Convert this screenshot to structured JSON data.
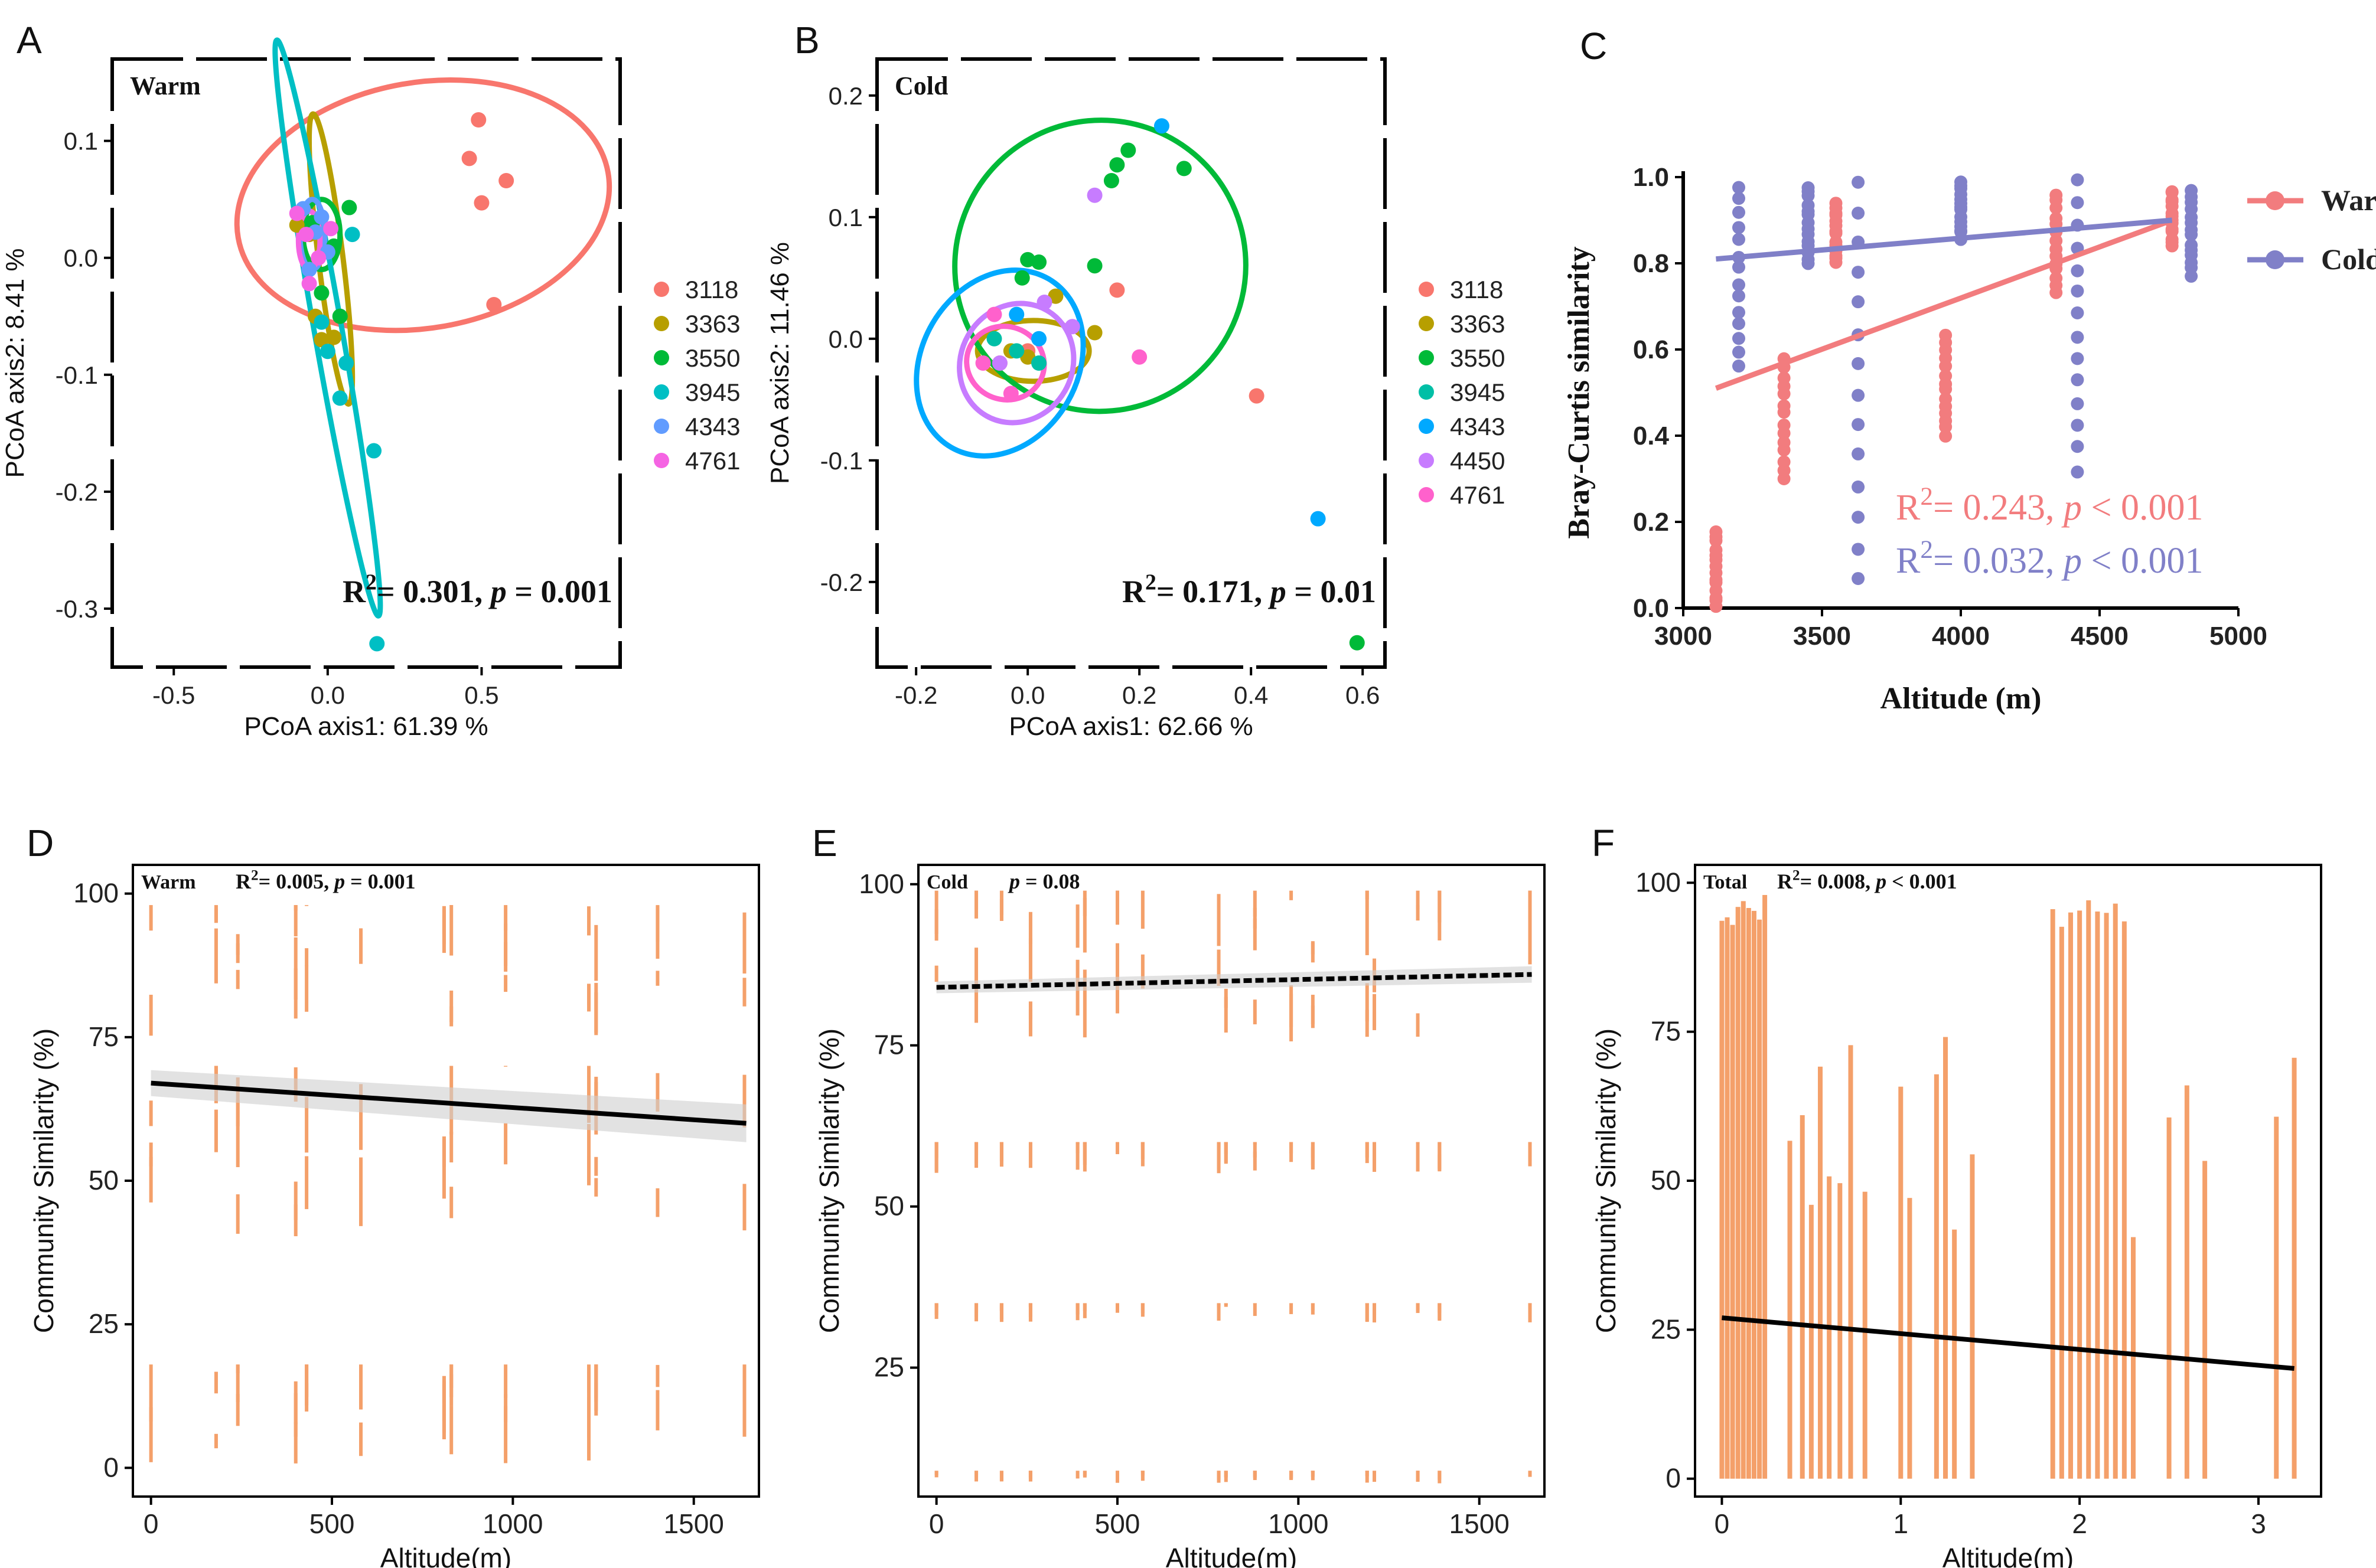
{
  "figure": "Multi-panel community similarity figure",
  "chart_data": [
    {
      "panel_label": "A",
      "type": "scatter",
      "title": "Warm",
      "xlabel": "PCoA axis1:  61.39 %",
      "ylabel": "PCoA axis2:  8.41 %",
      "xlim": [
        -0.7,
        0.95
      ],
      "ylim": [
        -0.35,
        0.17
      ],
      "xticks": [
        "-0.5",
        "0.0",
        "0.5"
      ],
      "xtick_values": [
        -0.5,
        0.0,
        0.5
      ],
      "yticks": [
        "0.1",
        "0.0",
        "-0.1",
        "-0.2",
        "-0.3"
      ],
      "ytick_values": [
        0.1,
        0.0,
        -0.1,
        -0.2,
        -0.3
      ],
      "annotation": {
        "r2": "0.301",
        "p": "p = 0.001"
      },
      "series": [
        {
          "name": "3118",
          "color": "#F8766D",
          "points": [
            [
              0.46,
              0.085
            ],
            [
              0.49,
              0.118
            ],
            [
              0.5,
              0.047
            ],
            [
              0.58,
              0.066
            ],
            [
              0.54,
              -0.04
            ]
          ],
          "ellipse": {
            "cx": 0.31,
            "cy": 0.045,
            "rx": 0.61,
            "ry": 0.105,
            "angle": 10
          }
        },
        {
          "name": "3363",
          "color": "#B79F00",
          "points": [
            [
              -0.02,
              -0.07
            ],
            [
              0.02,
              -0.068
            ],
            [
              -0.06,
              0.02
            ],
            [
              -0.1,
              0.028
            ],
            [
              -0.04,
              -0.05
            ]
          ],
          "ellipse": {
            "cx": 0.01,
            "cy": -0.001,
            "rx": 0.04,
            "ry": 0.125,
            "angle": 7
          }
        },
        {
          "name": "3550",
          "color": "#00BA38",
          "points": [
            [
              0.07,
              0.043
            ],
            [
              -0.05,
              0.03
            ],
            [
              0.02,
              0.01
            ],
            [
              -0.02,
              -0.03
            ],
            [
              0.04,
              -0.05
            ]
          ],
          "ellipse": {
            "cx": -0.02,
            "cy": 0.02,
            "rx": 0.06,
            "ry": 0.03,
            "angle": 0
          }
        },
        {
          "name": "3945",
          "color": "#00BFC4",
          "points": [
            [
              0.08,
              0.02
            ],
            [
              0.04,
              -0.12
            ],
            [
              0.15,
              -0.165
            ],
            [
              0.16,
              -0.33
            ],
            [
              -0.02,
              -0.055
            ],
            [
              0.0,
              -0.08
            ],
            [
              0.06,
              -0.09
            ]
          ],
          "ellipse": {
            "cx": 0.0,
            "cy": -0.06,
            "rx": 0.045,
            "ry": 0.25,
            "angle": 10
          }
        },
        {
          "name": "4343",
          "color": "#619CFF",
          "points": [
            [
              -0.08,
              0.042
            ],
            [
              -0.04,
              0.022
            ],
            [
              0.0,
              0.005
            ],
            [
              -0.06,
              -0.01
            ],
            [
              -0.02,
              0.035
            ]
          ],
          "ellipse": {
            "cx": -0.05,
            "cy": 0.02,
            "rx": 0.04,
            "ry": 0.03,
            "angle": 0
          }
        },
        {
          "name": "4761",
          "color": "#F564E3",
          "points": [
            [
              -0.1,
              0.038
            ],
            [
              -0.07,
              0.02
            ],
            [
              -0.03,
              0.0
            ],
            [
              -0.06,
              -0.022
            ],
            [
              0.01,
              0.025
            ]
          ],
          "ellipse": {
            "cx": -0.06,
            "cy": 0.015,
            "rx": 0.035,
            "ry": 0.025,
            "angle": 0
          }
        }
      ]
    },
    {
      "panel_label": "B",
      "type": "scatter",
      "title": "Cold",
      "xlabel": "PCoA axis1:  62.66 %",
      "ylabel": "PCoA axis2:  11.46 %",
      "xlim": [
        -0.27,
        0.64
      ],
      "ylim": [
        -0.27,
        0.23
      ],
      "xticks": [
        "-0.2",
        "0.0",
        "0.2",
        "0.4",
        "0.6"
      ],
      "xtick_values": [
        -0.2,
        0.0,
        0.2,
        0.4,
        0.6
      ],
      "yticks": [
        "0.2",
        "0.1",
        "0.0",
        "-0.1",
        "-0.2"
      ],
      "ytick_values": [
        0.2,
        0.1,
        0.0,
        -0.1,
        -0.2
      ],
      "annotation": {
        "r2": "0.171",
        "p": "p = 0.01"
      },
      "series": [
        {
          "name": "3118",
          "color": "#F8766D",
          "points": [
            [
              0.16,
              0.04
            ],
            [
              0.41,
              -0.047
            ],
            [
              0.0,
              -0.01
            ],
            [
              -0.05,
              -0.02
            ]
          ],
          "ellipse": null
        },
        {
          "name": "3363",
          "color": "#B79F00",
          "points": [
            [
              0.12,
              0.005
            ],
            [
              0.05,
              0.035
            ],
            [
              0.0,
              -0.015
            ],
            [
              -0.03,
              -0.01
            ]
          ],
          "ellipse": {
            "cx": 0.01,
            "cy": -0.01,
            "rx": 0.1,
            "ry": 0.025,
            "angle": 0
          }
        },
        {
          "name": "3550",
          "color": "#00BA38",
          "points": [
            [
              0.28,
              0.14
            ],
            [
              0.18,
              0.155
            ],
            [
              0.16,
              0.143
            ],
            [
              0.15,
              0.13
            ],
            [
              0.12,
              0.06
            ],
            [
              0.0,
              0.065
            ],
            [
              0.02,
              0.063
            ],
            [
              0.59,
              -0.25
            ],
            [
              -0.01,
              0.05
            ]
          ],
          "ellipse": {
            "cx": 0.13,
            "cy": 0.06,
            "rx": 0.26,
            "ry": 0.12,
            "angle": -40
          }
        },
        {
          "name": "3945",
          "color": "#00BFA6",
          "points": [
            [
              -0.06,
              0.0
            ],
            [
              -0.02,
              -0.01
            ],
            [
              0.02,
              -0.02
            ]
          ],
          "ellipse": null
        },
        {
          "name": "4343",
          "color": "#00A9FF",
          "points": [
            [
              0.24,
              0.175
            ],
            [
              0.52,
              -0.148
            ],
            [
              -0.02,
              0.02
            ],
            [
              0.02,
              0.0
            ]
          ],
          "ellipse": {
            "cx": -0.05,
            "cy": -0.02,
            "rx": 0.14,
            "ry": 0.08,
            "angle": -30
          }
        },
        {
          "name": "4450",
          "color": "#C77CFF",
          "points": [
            [
              0.12,
              0.118
            ],
            [
              0.03,
              0.03
            ],
            [
              -0.05,
              -0.02
            ],
            [
              0.08,
              0.01
            ]
          ],
          "ellipse": {
            "cx": -0.02,
            "cy": -0.02,
            "rx": 0.1,
            "ry": 0.05,
            "angle": -30
          }
        },
        {
          "name": "4761",
          "color": "#FF61CC",
          "points": [
            [
              0.2,
              -0.015
            ],
            [
              -0.06,
              0.02
            ],
            [
              -0.08,
              -0.02
            ],
            [
              -0.03,
              -0.045
            ]
          ],
          "ellipse": {
            "cx": -0.04,
            "cy": -0.02,
            "rx": 0.07,
            "ry": 0.03,
            "angle": -20
          }
        }
      ]
    },
    {
      "panel_label": "C",
      "type": "scatter",
      "title": "",
      "xlabel": "Altitude (m)",
      "ylabel": "Bray-Curtis similarity",
      "xlim": [
        3000,
        5000
      ],
      "ylim": [
        0,
        1.0
      ],
      "xticks": [
        "3000",
        "3500",
        "4000",
        "4500",
        "5000"
      ],
      "xtick_values": [
        3000,
        3500,
        4000,
        4500,
        5000
      ],
      "yticks": [
        "0.0",
        "0.2",
        "0.4",
        "0.6",
        "0.8",
        "1.0"
      ],
      "ytick_values": [
        0,
        0.2,
        0.4,
        0.6,
        0.8,
        1.0
      ],
      "legend": [
        "Warm",
        "Cold"
      ],
      "series": [
        {
          "name": "Warm",
          "color": "#F27C7E",
          "x_positions": [
            3118,
            3363,
            3550,
            3945,
            4343,
            4761
          ],
          "y_ranges": [
            [
              0.0,
              0.18
            ],
            [
              0.3,
              0.58
            ],
            [
              0.8,
              0.94
            ],
            [
              0.4,
              0.63
            ],
            [
              0.73,
              0.96
            ],
            [
              0.84,
              0.97
            ]
          ],
          "fit": [
            [
              3118,
              0.51
            ],
            [
              4761,
              0.9
            ]
          ]
        },
        {
          "name": "Cold",
          "color": "#8080C8",
          "x_positions": [
            3200,
            3450,
            3630,
            4000,
            4420,
            4830
          ],
          "y_ranges": [
            [
              0.56,
              0.98
            ],
            [
              0.8,
              0.98
            ],
            [
              0.07,
              0.99
            ],
            [
              0.86,
              0.99
            ],
            [
              0.32,
              0.99
            ],
            [
              0.77,
              0.97
            ]
          ],
          "fit": [
            [
              3118,
              0.81
            ],
            [
              4761,
              0.9
            ]
          ]
        }
      ],
      "annotations": [
        {
          "series": "Warm",
          "r2": "0.243",
          "p": "p < 0.001"
        },
        {
          "series": "Cold",
          "r2": "0.032",
          "p": "p < 0.001"
        }
      ]
    },
    {
      "panel_label": "D",
      "type": "scatter",
      "title": "Warm",
      "xlabel": "Altitude(m)",
      "ylabel": "Community Similarity (%)",
      "xlim": [
        -50,
        1680
      ],
      "ylim": [
        -5,
        105
      ],
      "xticks": [
        "0",
        "500",
        "1000",
        "1500"
      ],
      "xtick_values": [
        0,
        500,
        1000,
        1500
      ],
      "yticks": [
        "0",
        "25",
        "50",
        "75",
        "100"
      ],
      "ytick_values": [
        0,
        25,
        50,
        75,
        100
      ],
      "annotation": {
        "r2": "0.005",
        "p": "p = 0.001"
      },
      "point_color": "#F4A06A",
      "x_positions": [
        0,
        180,
        240,
        400,
        430,
        580,
        810,
        830,
        980,
        1210,
        1230,
        1400,
        1640
      ],
      "fit": [
        [
          0,
          67
        ],
        [
          1645,
          60
        ]
      ]
    },
    {
      "panel_label": "E",
      "type": "scatter",
      "title": "Cold",
      "xlabel": "Altitude(m)",
      "ylabel": "Community Similarity (%)",
      "xlim": [
        -50,
        1680
      ],
      "ylim": [
        5,
        103
      ],
      "xticks": [
        "0",
        "500",
        "1000",
        "1500"
      ],
      "xtick_values": [
        0,
        500,
        1000,
        1500
      ],
      "yticks": [
        "25",
        "50",
        "75",
        "100"
      ],
      "ytick_values": [
        25,
        50,
        75,
        100
      ],
      "annotation": {
        "r2": "",
        "p": "p = 0.08"
      },
      "point_color": "#F4A06A",
      "x_positions": [
        0,
        110,
        180,
        260,
        390,
        410,
        500,
        570,
        780,
        800,
        880,
        980,
        1040,
        1190,
        1210,
        1330,
        1390,
        1640
      ],
      "fit": [
        [
          0,
          84
        ],
        [
          1645,
          86
        ]
      ]
    },
    {
      "panel_label": "F",
      "type": "scatter",
      "title": "Total",
      "xlabel": "Altitude(m)",
      "ylabel": "Community Similarity (%)",
      "xlim": [
        -0.15,
        3.35
      ],
      "ylim": [
        -3,
        103
      ],
      "xticks": [
        "0",
        "1",
        "2",
        "3"
      ],
      "xtick_values": [
        0,
        1,
        2,
        3
      ],
      "yticks": [
        "0",
        "25",
        "50",
        "75",
        "100"
      ],
      "ytick_values": [
        0,
        25,
        50,
        75,
        100
      ],
      "annotation": {
        "r2": "0.008",
        "p": "p < 0.001"
      },
      "point_color": "#F4A06A",
      "x_positions": [
        0.0,
        0.03,
        0.06,
        0.09,
        0.12,
        0.15,
        0.18,
        0.21,
        0.24,
        0.38,
        0.45,
        0.5,
        0.55,
        0.6,
        0.66,
        0.72,
        0.8,
        1.0,
        1.05,
        1.2,
        1.25,
        1.3,
        1.4,
        1.85,
        1.9,
        1.95,
        2.0,
        2.05,
        2.1,
        2.15,
        2.2,
        2.25,
        2.3,
        2.5,
        2.6,
        2.7,
        3.1,
        3.2
      ],
      "fit": [
        [
          0,
          27
        ],
        [
          3.2,
          18.5
        ]
      ]
    }
  ]
}
